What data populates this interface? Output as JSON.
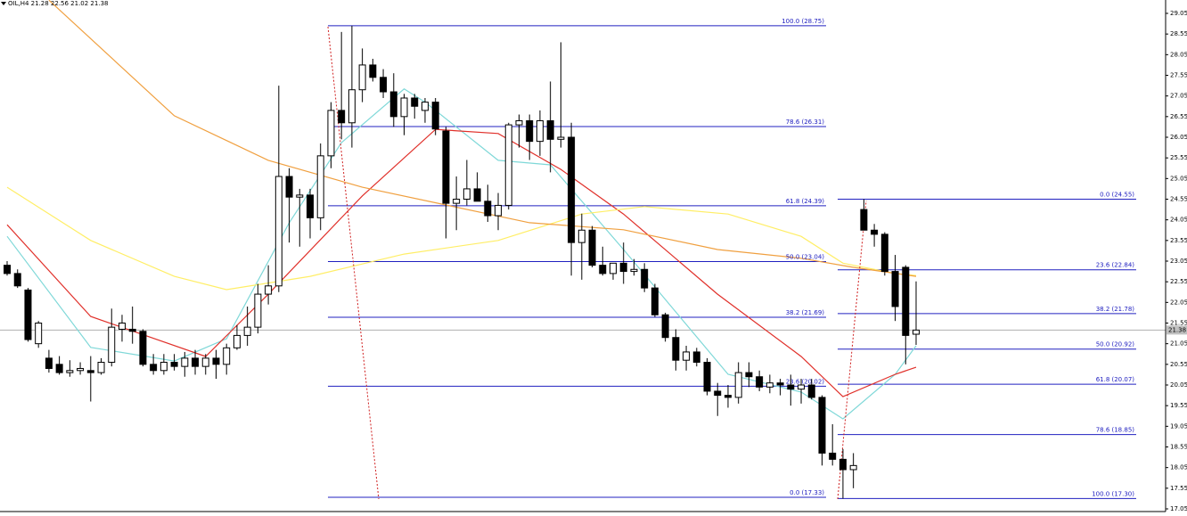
{
  "chart_data": {
    "type": "candlestick",
    "title": "OIL,H4 21.28 22.56 21.02 21.38",
    "ylim": [
      17.05,
      29.05
    ],
    "yticks": [
      17.05,
      17.55,
      18.05,
      18.55,
      19.05,
      19.55,
      20.05,
      20.55,
      21.05,
      21.55,
      22.05,
      22.55,
      23.05,
      23.55,
      24.05,
      24.55,
      25.05,
      25.55,
      26.05,
      26.55,
      27.05,
      27.55,
      28.05,
      28.55,
      29.05
    ],
    "last_price": 21.38,
    "candles": [
      [
        22.95,
        23.05,
        22.7,
        22.75
      ],
      [
        22.75,
        22.85,
        22.4,
        22.45
      ],
      [
        22.35,
        22.4,
        21.1,
        21.15
      ],
      [
        21.05,
        21.6,
        20.95,
        21.55
      ],
      [
        20.7,
        20.9,
        20.35,
        20.45
      ],
      [
        20.55,
        20.75,
        20.3,
        20.35
      ],
      [
        20.35,
        20.65,
        20.25,
        20.4
      ],
      [
        20.4,
        20.6,
        20.3,
        20.45
      ],
      [
        20.4,
        20.75,
        19.65,
        20.35
      ],
      [
        20.35,
        20.7,
        20.3,
        20.6
      ],
      [
        20.6,
        21.9,
        20.5,
        21.45
      ],
      [
        21.4,
        21.75,
        21.1,
        21.55
      ],
      [
        21.4,
        21.95,
        21.05,
        21.35
      ],
      [
        21.35,
        21.4,
        20.5,
        20.55
      ],
      [
        20.55,
        20.8,
        20.3,
        20.4
      ],
      [
        20.4,
        20.8,
        20.3,
        20.6
      ],
      [
        20.6,
        20.8,
        20.4,
        20.5
      ],
      [
        20.5,
        20.85,
        20.25,
        20.7
      ],
      [
        20.7,
        20.9,
        20.3,
        20.5
      ],
      [
        20.5,
        20.8,
        20.3,
        20.7
      ],
      [
        20.7,
        20.9,
        20.2,
        20.55
      ],
      [
        20.55,
        21.05,
        20.3,
        20.95
      ],
      [
        20.95,
        21.5,
        20.9,
        21.25
      ],
      [
        21.25,
        21.95,
        21.0,
        21.45
      ],
      [
        21.45,
        22.5,
        21.3,
        22.25
      ],
      [
        22.25,
        22.95,
        22.0,
        22.45
      ],
      [
        22.45,
        27.3,
        22.3,
        25.1
      ],
      [
        25.1,
        25.3,
        23.5,
        24.6
      ],
      [
        24.6,
        24.8,
        23.4,
        24.65
      ],
      [
        24.65,
        24.8,
        23.6,
        24.1
      ],
      [
        24.1,
        25.9,
        23.8,
        25.6
      ],
      [
        25.6,
        26.9,
        25.3,
        26.7
      ],
      [
        26.7,
        28.6,
        26.0,
        26.4
      ],
      [
        26.4,
        28.75,
        25.8,
        27.2
      ],
      [
        27.2,
        28.2,
        26.9,
        27.8
      ],
      [
        27.8,
        27.95,
        27.4,
        27.5
      ],
      [
        27.5,
        27.7,
        27.0,
        27.15
      ],
      [
        27.15,
        27.6,
        26.3,
        26.55
      ],
      [
        26.55,
        27.1,
        26.1,
        27.0
      ],
      [
        27.0,
        27.1,
        26.5,
        26.8
      ],
      [
        26.7,
        27.0,
        26.4,
        26.9
      ],
      [
        26.9,
        27.0,
        26.1,
        26.25
      ],
      [
        26.2,
        26.3,
        23.6,
        24.45
      ],
      [
        24.45,
        25.1,
        23.8,
        24.55
      ],
      [
        24.55,
        25.5,
        24.4,
        24.8
      ],
      [
        24.8,
        25.2,
        24.5,
        24.5
      ],
      [
        24.5,
        24.9,
        24.0,
        24.15
      ],
      [
        24.15,
        24.7,
        23.8,
        24.4
      ],
      [
        24.4,
        26.4,
        24.3,
        26.35
      ],
      [
        26.35,
        26.6,
        25.8,
        26.45
      ],
      [
        26.45,
        26.6,
        25.5,
        25.95
      ],
      [
        25.95,
        26.7,
        25.6,
        26.45
      ],
      [
        26.45,
        27.4,
        25.2,
        26.0
      ],
      [
        26.0,
        28.35,
        25.8,
        26.05
      ],
      [
        26.05,
        26.4,
        22.7,
        23.5
      ],
      [
        23.5,
        24.2,
        22.6,
        23.8
      ],
      [
        23.8,
        23.9,
        22.9,
        22.95
      ],
      [
        22.95,
        23.4,
        22.7,
        22.75
      ],
      [
        22.75,
        23.0,
        22.6,
        23.0
      ],
      [
        23.0,
        23.5,
        22.5,
        22.8
      ],
      [
        22.8,
        23.1,
        22.7,
        22.85
      ],
      [
        22.85,
        23.0,
        22.3,
        22.4
      ],
      [
        22.4,
        22.5,
        21.7,
        21.75
      ],
      [
        21.75,
        21.8,
        21.1,
        21.2
      ],
      [
        21.2,
        21.4,
        20.4,
        20.65
      ],
      [
        20.65,
        21.0,
        20.4,
        20.85
      ],
      [
        20.85,
        20.95,
        20.5,
        20.6
      ],
      [
        20.6,
        20.7,
        19.8,
        19.9
      ],
      [
        19.9,
        20.1,
        19.3,
        19.8
      ],
      [
        19.8,
        20.05,
        19.5,
        19.75
      ],
      [
        19.75,
        20.6,
        19.6,
        20.35
      ],
      [
        20.35,
        20.6,
        20.0,
        20.25
      ],
      [
        20.25,
        20.4,
        19.9,
        20.0
      ],
      [
        20.0,
        20.3,
        19.85,
        20.1
      ],
      [
        20.1,
        20.2,
        19.8,
        20.05
      ],
      [
        20.05,
        20.3,
        19.55,
        19.95
      ],
      [
        19.95,
        20.2,
        19.6,
        20.05
      ],
      [
        20.05,
        20.2,
        19.7,
        19.75
      ],
      [
        19.75,
        19.8,
        18.1,
        18.4
      ],
      [
        18.4,
        19.1,
        18.1,
        18.25
      ],
      [
        18.25,
        18.5,
        17.3,
        18.0
      ],
      [
        18.0,
        18.4,
        17.55,
        18.1
      ],
      [
        24.3,
        24.55,
        23.8,
        23.8
      ],
      [
        23.8,
        23.95,
        23.4,
        23.7
      ],
      [
        23.7,
        23.75,
        22.7,
        22.8
      ],
      [
        22.8,
        23.2,
        21.6,
        21.95
      ],
      [
        22.9,
        22.95,
        20.55,
        21.25
      ],
      [
        21.28,
        22.56,
        21.02,
        21.38
      ]
    ],
    "moving_averages": [
      {
        "color": "#7fd8d8",
        "x": [
          0,
          8,
          16,
          21,
          27,
          32,
          38,
          40,
          47,
          52,
          59,
          64,
          69,
          76,
          80,
          85,
          87
        ],
        "values": [
          23.65,
          20.96,
          20.63,
          21.17,
          23.98,
          25.92,
          27.22,
          26.9,
          25.49,
          25.38,
          23.33,
          21.82,
          20.31,
          19.88,
          19.23,
          20.31,
          21.0
        ]
      },
      {
        "color": "#e0302a",
        "x": [
          0,
          8,
          19,
          25,
          34,
          41,
          47,
          53,
          59,
          68,
          76,
          80,
          85,
          87
        ],
        "values": [
          23.93,
          21.71,
          20.74,
          22.25,
          24.63,
          26.24,
          26.14,
          25.27,
          24.19,
          22.25,
          20.74,
          19.77,
          20.31,
          20.48
        ]
      },
      {
        "color": "#ffee66",
        "x": [
          0,
          8,
          16,
          21,
          29,
          38,
          47,
          55,
          61,
          69,
          76,
          80,
          85,
          87
        ],
        "values": [
          24.84,
          23.55,
          22.68,
          22.36,
          22.68,
          23.22,
          23.55,
          24.19,
          24.37,
          24.19,
          23.65,
          23.0,
          22.75,
          22.7
        ]
      },
      {
        "color": "#f0a040",
        "x": [
          4,
          16,
          25,
          34,
          42,
          50,
          59,
          68,
          76,
          81,
          87
        ],
        "values": [
          29.37,
          26.57,
          25.49,
          24.84,
          24.41,
          23.98,
          23.81,
          23.33,
          23.12,
          22.9,
          22.68
        ]
      }
    ],
    "fib_sets": [
      {
        "levels": [
          {
            "label": "100.0 (28.75)",
            "value": 28.75
          },
          {
            "label": "78.6 (26.31)",
            "value": 26.31
          },
          {
            "label": "61.8 (24.39)",
            "value": 24.39
          },
          {
            "label": "50.0 (23.04)",
            "value": 23.04
          },
          {
            "label": "38.2 (21.69)",
            "value": 21.69
          },
          {
            "label": "23.6 (20.02)",
            "value": 20.02
          },
          {
            "label": "0.0 (17.33)",
            "value": 17.33
          }
        ]
      },
      {
        "levels": [
          {
            "label": "0.0 (24.55)",
            "value": 24.55
          },
          {
            "label": "23.6 (22.84)",
            "value": 22.84
          },
          {
            "label": "38.2 (21.78)",
            "value": 21.78
          },
          {
            "label": "50.0 (20.92)",
            "value": 20.92
          },
          {
            "label": "61.8 (20.07)",
            "value": 20.07
          },
          {
            "label": "78.6 (18.85)",
            "value": 18.85
          },
          {
            "label": "100.0 (17.30)",
            "value": 17.3
          }
        ]
      }
    ]
  }
}
